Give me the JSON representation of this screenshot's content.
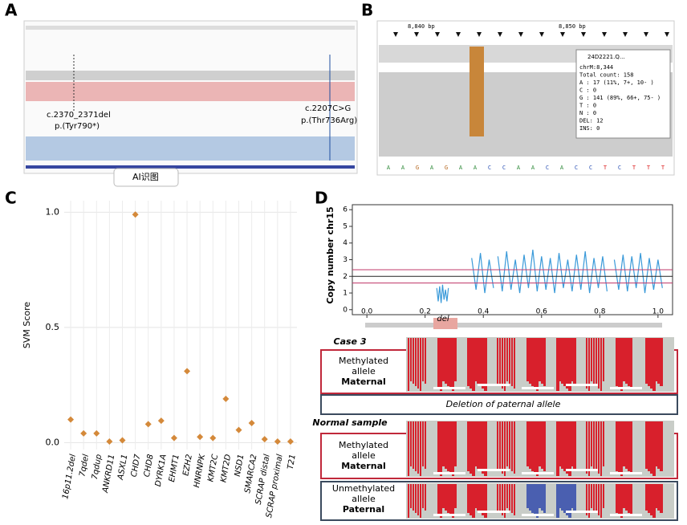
{
  "panel_labels": [
    "A",
    "B",
    "C",
    "D"
  ],
  "panel_a": {
    "variant_1": [
      "c.2370_2371del",
      "p.(Tyr790*)"
    ],
    "variant_2": [
      "c.2207C>G",
      "p.(Thr736Arg)"
    ],
    "button": "AI识图"
  },
  "panel_b": {
    "positions": [
      "8,840 bp",
      "8,850 bp"
    ],
    "popup": {
      "title": "24D2221.Q...",
      "lines": [
        "chrM:8,344",
        "Total count: 158",
        "A : 17 (11%, 7+, 10- )",
        "C : 0",
        "G : 141 (89%, 66+, 75- )",
        "T : 0",
        "N : 0",
        "DEL: 12",
        "INS: 0"
      ]
    },
    "bases": [
      "A",
      "A",
      "G",
      "A",
      "G",
      "A",
      "A",
      "C",
      "C",
      "A",
      "A",
      "C",
      "A",
      "C",
      "C",
      "T",
      "C",
      "T",
      "T",
      "T"
    ]
  },
  "chart_data": [
    {
      "type": "dot",
      "y_label": "SVM Score",
      "color": "#d4893a",
      "grid": true,
      "categories": [
        "16p11.2del",
        "7qdel",
        "7qdup",
        "ANKRD11",
        "ASXL1",
        "CHD7",
        "CHD8",
        "DYRK1A",
        "EHMT1",
        "EZH2",
        "HNRNPK",
        "KMT2C",
        "KMT2D",
        "NSD1",
        "SMARCA2",
        "SCRAP distal",
        "SCRAP proximal",
        "T21"
      ],
      "values": [
        0.1,
        0.04,
        0.04,
        0.005,
        0.01,
        0.99,
        0.08,
        0.095,
        0.02,
        0.31,
        0.025,
        0.02,
        0.19,
        0.055,
        0.085,
        0.015,
        0.005,
        0.005
      ],
      "ylim": [
        -0.03,
        1.05
      ],
      "yticks": [
        {
          "value": 0,
          "label": "0.0"
        },
        {
          "value": 0.5,
          "label": "0.5"
        },
        {
          "value": 1,
          "label": "1.0"
        }
      ]
    },
    {
      "type": "line",
      "y_label": "Copy number chr15",
      "annotation": "del",
      "xlim": [
        -0.05,
        1.05
      ],
      "ylim": [
        -0.3,
        6.3
      ],
      "xticks": [
        {
          "value": 0,
          "label": "0.0"
        },
        {
          "value": 0.2,
          "label": "0.2"
        },
        {
          "value": 0.4,
          "label": "0.4"
        },
        {
          "value": 0.6,
          "label": "0.6"
        },
        {
          "value": 0.8,
          "label": "0.8"
        },
        {
          "value": 1,
          "label": "1.0"
        }
      ],
      "yticks": [
        0,
        1,
        2,
        3,
        4,
        5,
        6
      ],
      "reference_lines": [
        {
          "value": 2.4,
          "color": "#c0396b"
        },
        {
          "value": 2,
          "color": "#222222"
        },
        {
          "value": 1.6,
          "color": "#c0396b"
        }
      ],
      "x": [
        0.24,
        0.245,
        0.25,
        0.255,
        0.26,
        0.265,
        0.27,
        0.275,
        0.28,
        0.3,
        0.36,
        0.375,
        0.39,
        0.405,
        0.42,
        0.435,
        0.44,
        0.45,
        0.465,
        0.48,
        0.495,
        0.51,
        0.525,
        0.54,
        0.555,
        0.57,
        0.585,
        0.6,
        0.615,
        0.63,
        0.645,
        0.66,
        0.675,
        0.69,
        0.705,
        0.72,
        0.735,
        0.75,
        0.765,
        0.78,
        0.795,
        0.81,
        0.825,
        0.84,
        0.85,
        0.865,
        0.88,
        0.895,
        0.91,
        0.925,
        0.94,
        0.955,
        0.97,
        0.985,
        1.0,
        1.015
      ],
      "series": [
        {
          "color": "#3a9ad9",
          "values": [
            1.3,
            0.5,
            1.4,
            0.4,
            1.5,
            0.6,
            1.2,
            0.5,
            1.3,
            null,
            3.1,
            1.2,
            3.4,
            1.0,
            3.0,
            1.3,
            null,
            3.2,
            1.1,
            3.5,
            1.2,
            3.0,
            1.0,
            3.3,
            1.3,
            3.6,
            1.1,
            3.2,
            1.2,
            3.1,
            1.0,
            3.4,
            1.3,
            3.0,
            1.1,
            3.3,
            1.2,
            3.5,
            1.0,
            3.1,
            1.3,
            3.2,
            1.1,
            null,
            3.0,
            1.2,
            3.3,
            1.1,
            3.2,
            1.3,
            3.4,
            1.0,
            3.1,
            1.2,
            3.0,
            1.3
          ]
        }
      ]
    }
  ],
  "panel_d": {
    "case_title": "Case 3",
    "deletion_note": "Deletion of paternal allele",
    "normal_title": "Normal sample",
    "case_rows": [
      {
        "lines": [
          "Methylated",
          "allele"
        ],
        "parent": "Maternal"
      }
    ],
    "normal_rows": [
      {
        "lines": [
          "Methylated",
          "allele"
        ],
        "parent": "Maternal"
      },
      {
        "lines": [
          "Unmethylated",
          "allele"
        ],
        "parent": "Paternal"
      }
    ]
  }
}
